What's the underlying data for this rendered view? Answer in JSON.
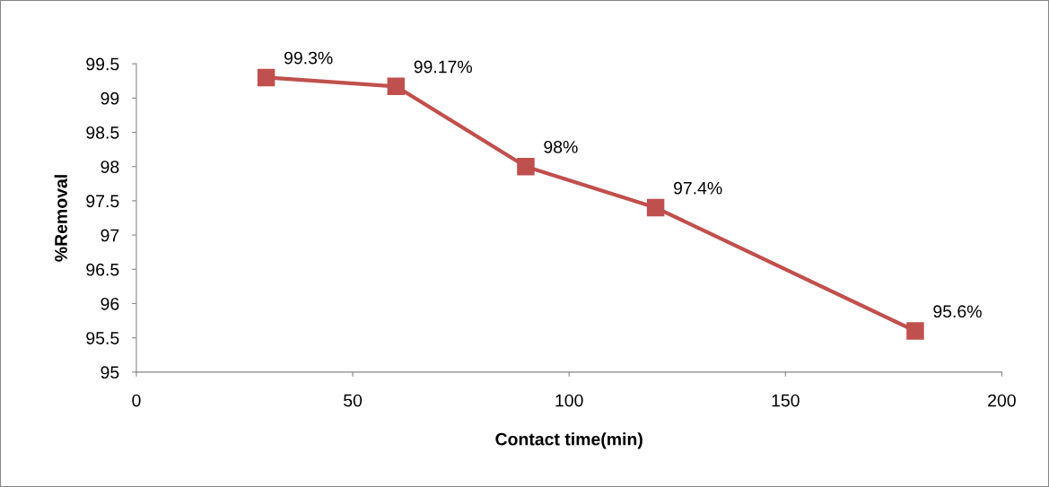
{
  "chart_data": {
    "type": "line",
    "xlabel": "Contact time(min)",
    "ylabel": "%Removal",
    "x": [
      30,
      60,
      90,
      120,
      180
    ],
    "series": [
      {
        "color": "#c0504d",
        "values": [
          99.3,
          99.17,
          98,
          97.4,
          95.6
        ],
        "value_labels": [
          "99.3%",
          "99.17%",
          "98%",
          "97.4%",
          "95.6%"
        ]
      }
    ],
    "xlim": [
      0,
      200
    ],
    "xticks": [
      0,
      50,
      100,
      150,
      200
    ],
    "ylim": [
      95,
      99.5
    ],
    "yticks": [
      95,
      95.5,
      96,
      96.5,
      97,
      97.5,
      98,
      98.5,
      99,
      99.5
    ],
    "grid": false,
    "legend": false,
    "marker": "square",
    "line_style": "solid"
  }
}
